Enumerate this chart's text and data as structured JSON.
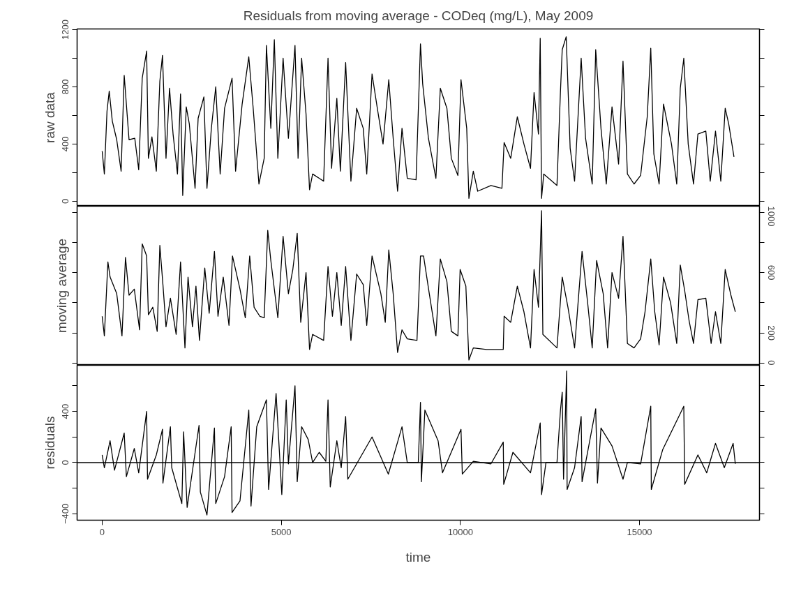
{
  "chart_data": [
    {
      "type": "line",
      "title": "Residuals from moving average - CODeq (mg/L), May 2009",
      "ylabel": "raw data",
      "xlim": [
        -700,
        18350
      ],
      "ylim": [
        -35,
        1205
      ],
      "yticks": [
        0,
        {
          "value": 200,
          "label": null
        },
        400,
        {
          "value": 600,
          "label": null
        },
        800,
        {
          "value": 1000,
          "label": null
        },
        1200
      ],
      "tick_labels": "y",
      "series": [
        {
          "color": "#000000",
          "x": [
            0,
            61,
            135,
            197,
            283,
            406,
            529,
            615,
            750,
            910,
            1020,
            1118,
            1241,
            1290,
            1389,
            1512,
            1610,
            1684,
            1782,
            1880,
            1979,
            2102,
            2188,
            2249,
            2347,
            2433,
            2593,
            2679,
            2839,
            2925,
            3048,
            3171,
            3294,
            3417,
            3626,
            3724,
            3908,
            4093,
            4216,
            4376,
            4523,
            4585,
            4708,
            4806,
            4904,
            5051,
            5199,
            5383,
            5469,
            5568,
            5691,
            5789,
            5875,
            6059,
            6182,
            6305,
            6404,
            6551,
            6649,
            6797,
            6944,
            7104,
            7288,
            7386,
            7534,
            7681,
            7841,
            8001,
            8124,
            8247,
            8370,
            8517,
            8763,
            8886,
            8948,
            9108,
            9317,
            9440,
            9624,
            9747,
            9931,
            10017,
            10177,
            10238,
            10361,
            10484,
            10853,
            11160,
            11221,
            11405,
            11590,
            11774,
            11958,
            12057,
            12180,
            12229,
            12266,
            12327,
            12696,
            12794,
            12843,
            12954,
            13065,
            13188,
            13372,
            13495,
            13680,
            13778,
            13925,
            14073,
            14233,
            14417,
            14540,
            14663,
            14848,
            15032,
            15216,
            15315,
            15401,
            15548,
            15671,
            15893,
            16040,
            16139,
            16237,
            16360,
            16508,
            16631,
            16852,
            16975,
            17122,
            17270,
            17393,
            17491,
            17638
          ],
          "values": [
            350,
            190,
            630,
            770,
            560,
            430,
            210,
            880,
            430,
            440,
            220,
            860,
            1050,
            300,
            450,
            210,
            840,
            1020,
            300,
            790,
            470,
            190,
            750,
            40,
            660,
            540,
            90,
            580,
            730,
            90,
            510,
            800,
            190,
            650,
            860,
            210,
            680,
            1010,
            650,
            120,
            300,
            1090,
            510,
            1130,
            300,
            1000,
            440,
            1090,
            300,
            1000,
            610,
            80,
            190,
            160,
            140,
            1000,
            230,
            720,
            210,
            970,
            140,
            650,
            510,
            190,
            890,
            650,
            400,
            850,
            440,
            70,
            510,
            160,
            150,
            1100,
            820,
            440,
            160,
            790,
            650,
            300,
            180,
            850,
            510,
            20,
            210,
            70,
            110,
            90,
            410,
            300,
            590,
            400,
            230,
            760,
            470,
            1140,
            20,
            190,
            110,
            770,
            1060,
            1150,
            370,
            140,
            1000,
            440,
            120,
            1060,
            510,
            120,
            660,
            260,
            980,
            190,
            120,
            180,
            590,
            1070,
            330,
            120,
            680,
            400,
            120,
            790,
            1000,
            400,
            120,
            470,
            490,
            140,
            490,
            140,
            650,
            540,
            310
          ]
        }
      ]
    },
    {
      "type": "line",
      "ylabel": "moving average",
      "xlim": [
        -700,
        18350
      ],
      "y2lim": [
        -15,
        1040
      ],
      "y2ticks": [
        0,
        200,
        {
          "value": 400,
          "label": null
        },
        600,
        {
          "value": 800,
          "label": null
        },
        1000
      ],
      "tick_labels": "y",
      "series": [
        {
          "color": "#000000",
          "axis": "y2",
          "x": [
            0,
            61,
            160,
            221,
            406,
            553,
            651,
            750,
            897,
            1044,
            1118,
            1241,
            1290,
            1413,
            1536,
            1610,
            1696,
            1782,
            1905,
            2065,
            2188,
            2311,
            2397,
            2520,
            2618,
            2716,
            2864,
            2987,
            3134,
            3233,
            3380,
            3540,
            3638,
            3847,
            3995,
            4118,
            4241,
            4401,
            4523,
            4622,
            4708,
            4904,
            5051,
            5199,
            5322,
            5445,
            5543,
            5691,
            5789,
            5875,
            6182,
            6305,
            6428,
            6551,
            6674,
            6797,
            6944,
            7104,
            7288,
            7386,
            7534,
            7780,
            7903,
            8001,
            8124,
            8247,
            8370,
            8517,
            8788,
            8886,
            8972,
            9132,
            9317,
            9440,
            9624,
            9747,
            9931,
            9993,
            10153,
            10238,
            10361,
            10730,
            11197,
            11221,
            11405,
            11590,
            11774,
            11958,
            12057,
            12180,
            12266,
            12303,
            12696,
            12843,
            13003,
            13188,
            13397,
            13557,
            13680,
            13803,
            13987,
            14110,
            14233,
            14417,
            14540,
            14663,
            14848,
            15032,
            15155,
            15315,
            15426,
            15548,
            15671,
            15868,
            16040,
            16139,
            16262,
            16385,
            16508,
            16631,
            16852,
            17000,
            17122,
            17270,
            17393,
            17552,
            17675
          ],
          "values": [
            310,
            180,
            670,
            570,
            460,
            180,
            700,
            450,
            490,
            220,
            790,
            710,
            320,
            370,
            210,
            780,
            520,
            240,
            430,
            190,
            670,
            100,
            570,
            240,
            510,
            150,
            630,
            330,
            740,
            310,
            570,
            250,
            710,
            490,
            300,
            710,
            370,
            310,
            300,
            880,
            680,
            300,
            840,
            460,
            620,
            860,
            270,
            600,
            90,
            190,
            150,
            640,
            310,
            600,
            250,
            640,
            150,
            590,
            520,
            250,
            710,
            460,
            270,
            750,
            460,
            70,
            220,
            160,
            150,
            710,
            710,
            460,
            180,
            690,
            540,
            210,
            180,
            620,
            510,
            20,
            100,
            90,
            90,
            310,
            270,
            510,
            340,
            100,
            620,
            370,
            1010,
            190,
            100,
            570,
            370,
            100,
            740,
            390,
            100,
            680,
            460,
            100,
            600,
            430,
            840,
            130,
            100,
            160,
            340,
            690,
            340,
            120,
            570,
            400,
            130,
            650,
            480,
            280,
            130,
            420,
            430,
            130,
            340,
            130,
            620,
            450,
            340
          ]
        }
      ]
    },
    {
      "type": "line",
      "ylabel": "residuals",
      "xlabel": "time",
      "xlim": [
        -700,
        18350
      ],
      "xticks": [
        0,
        5000,
        10000,
        15000
      ],
      "ylim": [
        -450,
        760
      ],
      "yticks": [
        -400,
        {
          "value": -200,
          "label": null
        },
        0,
        {
          "value": 200,
          "label": null
        },
        400,
        {
          "value": 600,
          "label": null
        }
      ],
      "ref_lines": [
        {
          "axis": "y",
          "value": 0,
          "color": "#000000"
        }
      ],
      "series": [
        {
          "color": "#000000",
          "x": [
            0,
            61,
            221,
            344,
            615,
            676,
            897,
            1020,
            1241,
            1266,
            1512,
            1684,
            1696,
            1905,
            1942,
            2224,
            2273,
            2372,
            2704,
            2741,
            2925,
            3134,
            3171,
            3417,
            3601,
            3626,
            3847,
            4093,
            4155,
            4315,
            4585,
            4646,
            4855,
            5015,
            5138,
            5199,
            5383,
            5445,
            5568,
            5752,
            5875,
            6059,
            6244,
            6305,
            6367,
            6551,
            6674,
            6797,
            6858,
            7534,
            7989,
            8370,
            8517,
            8825,
            8886,
            8911,
            9009,
            9378,
            9501,
            10017,
            10054,
            10361,
            10853,
            11197,
            11210,
            11467,
            11958,
            12229,
            12266,
            12389,
            12696,
            12794,
            12843,
            12880,
            12966,
            12980,
            13188,
            13372,
            13397,
            13778,
            13827,
            13925,
            14233,
            14540,
            14663,
            15032,
            15315,
            15330,
            15647,
            16237,
            16262,
            16631,
            16877,
            17122,
            17368,
            17614,
            17675
          ],
          "values": [
            60,
            -40,
            170,
            -60,
            230,
            -110,
            110,
            -80,
            400,
            -130,
            60,
            260,
            -160,
            280,
            -40,
            -320,
            240,
            -350,
            290,
            -230,
            -410,
            270,
            -320,
            -110,
            280,
            -390,
            -300,
            410,
            -340,
            280,
            490,
            -210,
            540,
            -250,
            490,
            -10,
            600,
            -150,
            280,
            180,
            0,
            80,
            10,
            490,
            -190,
            170,
            -40,
            360,
            -130,
            200,
            -90,
            280,
            0,
            0,
            470,
            -150,
            410,
            170,
            -80,
            260,
            -90,
            10,
            -10,
            160,
            -170,
            80,
            -80,
            310,
            -250,
            0,
            0,
            410,
            550,
            -130,
            715,
            -210,
            -40,
            360,
            -150,
            420,
            -160,
            270,
            130,
            -130,
            0,
            -10,
            440,
            -210,
            100,
            440,
            -170,
            60,
            -80,
            150,
            -40,
            150,
            -10
          ]
        }
      ]
    }
  ]
}
